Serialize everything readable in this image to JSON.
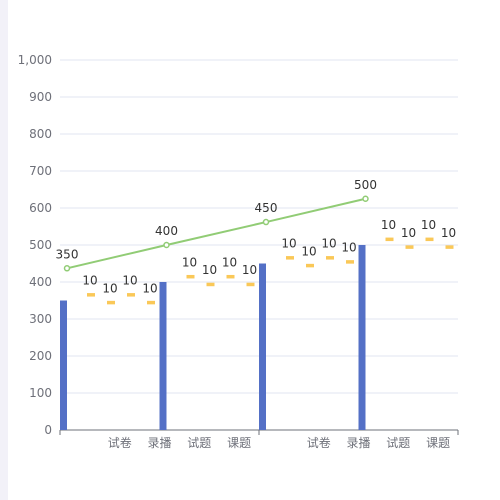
{
  "chart_data": {
    "type": "bar",
    "title": "",
    "xlabel": "",
    "ylabel": "",
    "ylim": [
      0,
      1000
    ],
    "yticks": [
      "0",
      "100",
      "200",
      "300",
      "400",
      "500",
      "600",
      "700",
      "800",
      "900",
      "1,000"
    ],
    "categories": [
      "",
      "试卷",
      "录播",
      "试题",
      "课题",
      "",
      "试卷",
      "录播",
      "试题",
      "课题"
    ],
    "grid": true,
    "legend": "none",
    "bar_color": "#5470c6",
    "line_color": "#91cc75",
    "marker_color": "#fac858",
    "groups": [
      {
        "bar_value": 350,
        "bar_label": "350",
        "line_value": 437,
        "markers": [
          {
            "value": 366,
            "label": "10"
          },
          {
            "value": 345,
            "label": "10"
          },
          {
            "value": 366,
            "label": "10"
          },
          {
            "value": 345,
            "label": "10"
          }
        ]
      },
      {
        "bar_value": 400,
        "bar_label": "400",
        "line_value": 500,
        "markers": [
          {
            "value": 415,
            "label": "10"
          },
          {
            "value": 394,
            "label": "10"
          },
          {
            "value": 415,
            "label": "10"
          },
          {
            "value": 394,
            "label": "10"
          }
        ]
      },
      {
        "bar_value": 450,
        "bar_label": "450",
        "line_value": 562,
        "markers": [
          {
            "value": 466,
            "label": "10"
          },
          {
            "value": 445,
            "label": "10"
          },
          {
            "value": 466,
            "label": "10"
          },
          {
            "value": 455,
            "label": "10"
          }
        ]
      },
      {
        "bar_value": 500,
        "bar_label": "500",
        "line_value": 625,
        "markers": [
          {
            "value": 516,
            "label": "10"
          },
          {
            "value": 495,
            "label": "10"
          },
          {
            "value": 516,
            "label": "10"
          },
          {
            "value": 495,
            "label": "10"
          }
        ]
      }
    ]
  }
}
